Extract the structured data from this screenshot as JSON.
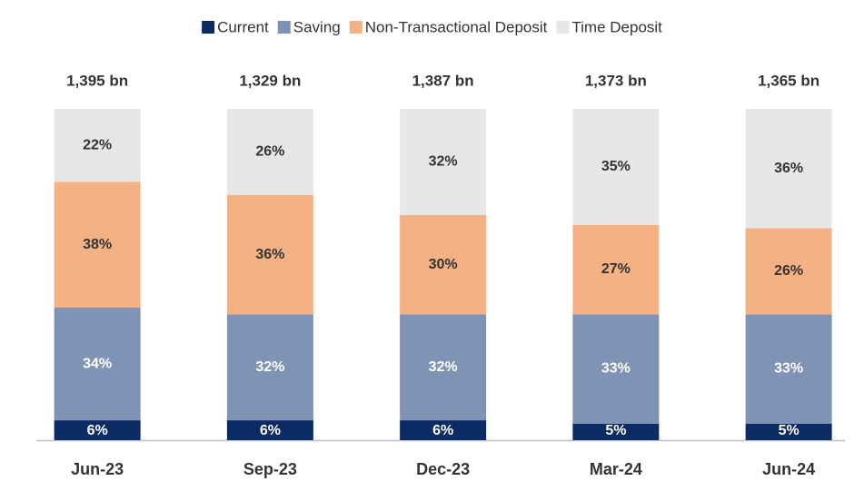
{
  "chart_data": {
    "type": "stacked_bar",
    "categories": [
      "Jun-23",
      "Sep-23",
      "Dec-23",
      "Mar-24",
      "Jun-24"
    ],
    "series": [
      {
        "name": "Current",
        "color": "#0c2a63",
        "values": [
          6,
          6,
          6,
          5,
          5
        ],
        "value_labels": [
          "6%",
          "6%",
          "6%",
          "5%",
          "5%"
        ]
      },
      {
        "name": "Saving",
        "color": "#7f93b5",
        "values": [
          34,
          32,
          32,
          33,
          33
        ],
        "value_labels": [
          "34%",
          "32%",
          "32%",
          "33%",
          "33%"
        ]
      },
      {
        "name": "Non-Transactional Deposit",
        "color": "#f4b183",
        "values": [
          38,
          36,
          30,
          27,
          26
        ],
        "value_labels": [
          "38%",
          "36%",
          "30%",
          "27%",
          "26%"
        ]
      },
      {
        "name": "Time Deposit",
        "color": "#e7e7e7",
        "values": [
          22,
          26,
          32,
          35,
          36
        ],
        "value_labels": [
          "22%",
          "26%",
          "32%",
          "35%",
          "36%"
        ]
      }
    ],
    "totals": {
      "values": [
        1395,
        1329,
        1387,
        1373,
        1365
      ],
      "value_labels": [
        "1,395 bn",
        "1,329 bn",
        "1,387 bn",
        "1,373 bn",
        "1,365 bn"
      ]
    },
    "ylim": [
      0,
      100
    ],
    "legend": "top"
  }
}
